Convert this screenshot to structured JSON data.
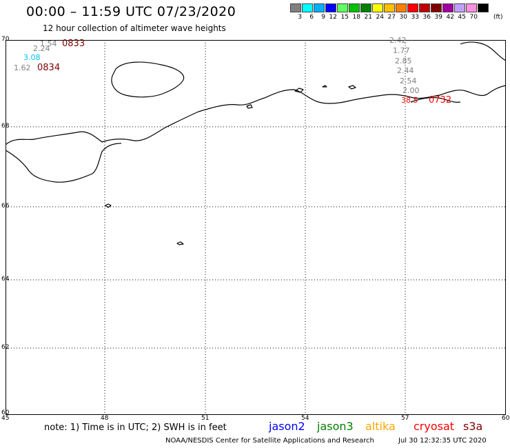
{
  "header": {
    "title": "00:00 – 11:59 UTC 07/23/2020",
    "subtitle": "12 hour collection of altimeter wave heights"
  },
  "color_scale": {
    "colors": [
      "#808080",
      "#00ffff",
      "#00b0ff",
      "#0000ff",
      "#60ff60",
      "#00c000",
      "#008000",
      "#ffff00",
      "#ffc000",
      "#ff8000",
      "#ff0000",
      "#c00000",
      "#800000",
      "#a000a0",
      "#c0a0ff",
      "#ff90e0",
      "#000000"
    ],
    "labels": [
      "3",
      "6",
      "9",
      "12",
      "15",
      "18",
      "21",
      "24",
      "27",
      "30",
      "33",
      "36",
      "39",
      "42",
      "45",
      "70"
    ],
    "unit": "(ft)"
  },
  "axes": {
    "lat_labels": [
      "70",
      "68",
      "66",
      "64",
      "62",
      "60"
    ],
    "lon_labels": [
      "45",
      "48",
      "51",
      "54",
      "57",
      "60"
    ]
  },
  "observations": [
    {
      "text": "1.54",
      "color": "#808080"
    },
    {
      "text": "0833",
      "color": "#800000"
    },
    {
      "text": "2.24",
      "color": "#808080"
    },
    {
      "text": "3.08",
      "color": "#00bfff"
    },
    {
      "text": "1.62",
      "color": "#808080"
    },
    {
      "text": "0834",
      "color": "#800000"
    },
    {
      "text": "2.42",
      "color": "#808080"
    },
    {
      "text": "1.77",
      "color": "#808080"
    },
    {
      "text": "2.85",
      "color": "#808080"
    },
    {
      "text": "2.44",
      "color": "#808080"
    },
    {
      "text": "2.54",
      "color": "#808080"
    },
    {
      "text": "2.00",
      "color": "#808080"
    },
    {
      "text": "38.5",
      "color": "#ff0000"
    },
    {
      "text": "0732",
      "color": "#ff0000"
    }
  ],
  "footer": {
    "note": "note:  1) Time is in UTC;  2) SWH is in feet",
    "legend": [
      {
        "name": "jason2",
        "color": "#0000ff"
      },
      {
        "name": "jason3",
        "color": "#008000"
      },
      {
        "name": "altika",
        "color": "#ffa500"
      },
      {
        "name": "cryosat",
        "color": "#ff0000"
      },
      {
        "name": "s3a",
        "color": "#800000"
      }
    ],
    "credit": "NOAA/NESDIS Center for Satellite Applications and Research",
    "timestamp": "Jul 30 12:32:35 UTC 2020"
  }
}
